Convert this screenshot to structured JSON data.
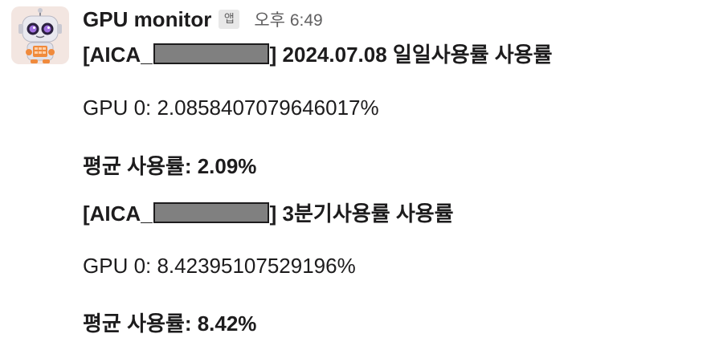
{
  "message": {
    "sender": "GPU monitor",
    "app_badge": "앱",
    "timestamp": "오후 6:49",
    "avatar_icon": "robot-avatar-icon",
    "daily": {
      "prefix": "[AICA_",
      "suffix": "] 2024.07.08 일일사용률 사용률",
      "gpu_line": "GPU 0: 2.0858407079646017%",
      "avg_line": "평균 사용률: 2.09%"
    },
    "quarterly": {
      "prefix": "[AICA_",
      "suffix": "] 3분기사용률 사용률",
      "gpu_line": "GPU 0: 8.42395107529196%",
      "avg_line": "평균 사용률: 8.42%"
    }
  },
  "colors": {
    "text": "#1d1c1d",
    "muted": "#616061",
    "redaction": "#808080"
  }
}
